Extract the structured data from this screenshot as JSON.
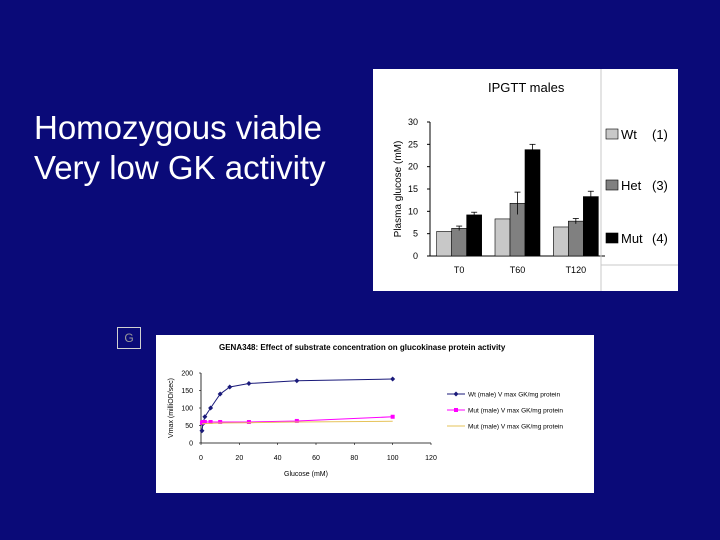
{
  "slide": {
    "lines": [
      "Homozygous viable",
      "Very low GK activity"
    ],
    "tag": "G",
    "background": "#0a0a78",
    "text_color": "#ffffff"
  },
  "chart_data": [
    {
      "type": "bar",
      "title": "IPGTT males",
      "xlabel": "",
      "ylabel": "Plasma glucose (mM)",
      "categories": [
        "T0",
        "T60",
        "T120"
      ],
      "ylim": [
        0,
        30
      ],
      "yticks": [
        0,
        5,
        10,
        15,
        20,
        25,
        30
      ],
      "grid": false,
      "legend_position": "right",
      "series": [
        {
          "name": "Wt",
          "count": "(1)",
          "color": "#c8c8c8",
          "values": [
            5.5,
            8.3,
            6.5
          ],
          "errors": [
            0,
            0,
            0
          ]
        },
        {
          "name": "Het",
          "count": "(3)",
          "color": "#808080",
          "values": [
            6.2,
            11.8,
            7.8
          ],
          "errors": [
            0.5,
            2.5,
            0.6
          ]
        },
        {
          "name": "Mut",
          "count": "(4)",
          "color": "#000000",
          "values": [
            9.2,
            23.8,
            13.3
          ],
          "errors": [
            0.6,
            1.2,
            1.2
          ]
        }
      ]
    },
    {
      "type": "line",
      "title": "GENA348: Effect of substrate concentration on glucokinase protein activity",
      "xlabel": "Glucose (mM)",
      "ylabel": "Vmax (milliOD/sec)",
      "xlim": [
        0,
        120
      ],
      "ylim": [
        0,
        200
      ],
      "xticks": [
        0,
        20,
        40,
        60,
        80,
        100,
        120
      ],
      "yticks": [
        0,
        50,
        100,
        150,
        200
      ],
      "grid": false,
      "legend_position": "right",
      "series": [
        {
          "name": "Wt (male) V max GK/mg protein",
          "color": "#1a1a7a",
          "marker": "diamond",
          "x": [
            0.5,
            1,
            2,
            5,
            10,
            15,
            25,
            50,
            100
          ],
          "y": [
            35,
            55,
            75,
            100,
            140,
            160,
            170,
            178,
            183
          ]
        },
        {
          "name": "Mut (male) V max GK/mg protein",
          "color": "#ff00ff",
          "marker": "square",
          "x": [
            0.5,
            1,
            2,
            5,
            10,
            25,
            50,
            100
          ],
          "y": [
            58,
            60,
            60,
            60,
            60,
            60,
            63,
            75
          ]
        },
        {
          "name": "Mut (male) V max GK/mg protein",
          "color": "#e6c35a",
          "marker": "none",
          "x": [
            0.5,
            5,
            10,
            25,
            50,
            100
          ],
          "y": [
            55,
            56,
            57,
            58,
            60,
            62
          ]
        }
      ]
    }
  ]
}
